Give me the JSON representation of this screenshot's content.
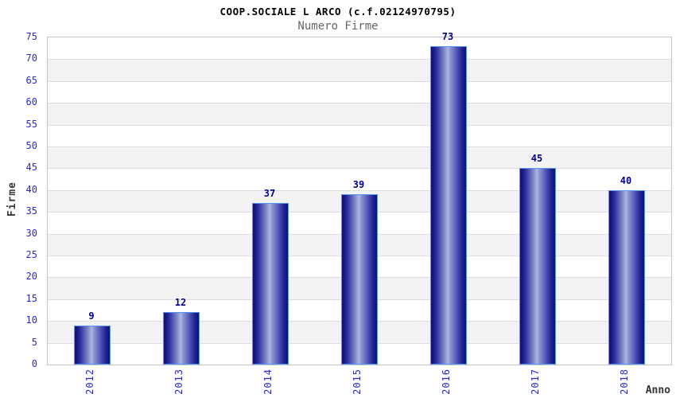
{
  "chart_data": {
    "type": "bar",
    "title": "COOP.SOCIALE L ARCO (c.f.02124970795)",
    "subtitle": "Numero Firme",
    "xlabel": "Anno",
    "ylabel": "Firme",
    "categories": [
      "2012",
      "2013",
      "2014",
      "2015",
      "2016",
      "2017",
      "2018"
    ],
    "values": [
      9,
      12,
      37,
      39,
      73,
      45,
      40
    ],
    "ylim": [
      0,
      75
    ],
    "ytick_step": 5,
    "yticks": [
      0,
      5,
      10,
      15,
      20,
      25,
      30,
      35,
      40,
      45,
      50,
      55,
      60,
      65,
      70,
      75
    ],
    "grid": "horizontal-bands",
    "legend": "none",
    "colors": {
      "bar_dark": "#10106e",
      "bar_mid": "#22229a",
      "bar_highlight": "#aeb6e2",
      "bar_border": "#5494f2",
      "tick_label_blue": "#2828d0",
      "value_label_navy": "#00008b",
      "axis_title_gray": "#3a3a3a",
      "subtitle_gray": "#666666",
      "band_gray": "#f2f2f2",
      "band_white": "#ffffff",
      "gridline": "#dcdcdc",
      "plot_border": "#c4c4c4"
    }
  }
}
